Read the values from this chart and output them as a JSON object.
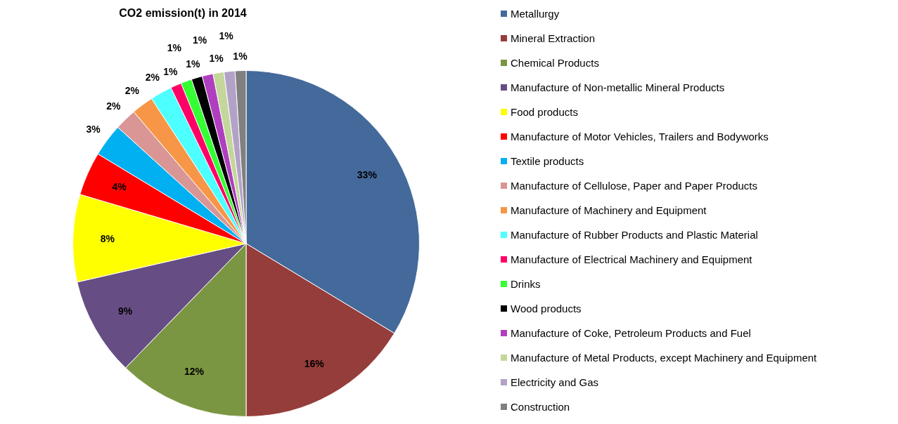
{
  "chart_data": {
    "type": "pie",
    "title": "CO2 emission(t) in 2014",
    "categories": [
      "Metallurgy",
      "Mineral Extraction",
      "Chemical Products",
      "Manufacture of Non-metallic Mineral Products",
      "Food products",
      "Manufacture of Motor Vehicles, Trailers and Bodyworks",
      "Textile products",
      "Manufacture of Cellulose, Paper and Paper Products",
      "Manufacture of Machinery and Equipment",
      "Manufacture of Rubber Products and Plastic Material",
      "Manufacture of Electrical Machinery and Equipment",
      "Drinks",
      "Wood products",
      "Manufacture of Coke, Petroleum Products and Fuel",
      "Manufacture of Metal Products, except Machinery and Equipment",
      "Electricity and Gas",
      "Construction"
    ],
    "values": [
      33,
      16,
      12,
      9,
      8,
      4,
      3,
      2,
      2,
      2,
      1,
      1,
      1,
      1,
      1,
      1,
      1
    ],
    "colors": [
      "#44699b",
      "#953d3b",
      "#7b9642",
      "#664e84",
      "#ffff00",
      "#ff0000",
      "#00b0f0",
      "#d99694",
      "#f79646",
      "#4dffff",
      "#ff0066",
      "#33ff33",
      "#000000",
      "#b03fc0",
      "#c4d79b",
      "#b3a2c7",
      "#808080"
    ],
    "value_labels": [
      "33%",
      "16%",
      "12%",
      "9%",
      "8%",
      "4%",
      "3%",
      "2%",
      "2%",
      "2%",
      "1%",
      "1%",
      "1%",
      "1%",
      "1%",
      "1%",
      "1%"
    ],
    "legend": "right"
  }
}
